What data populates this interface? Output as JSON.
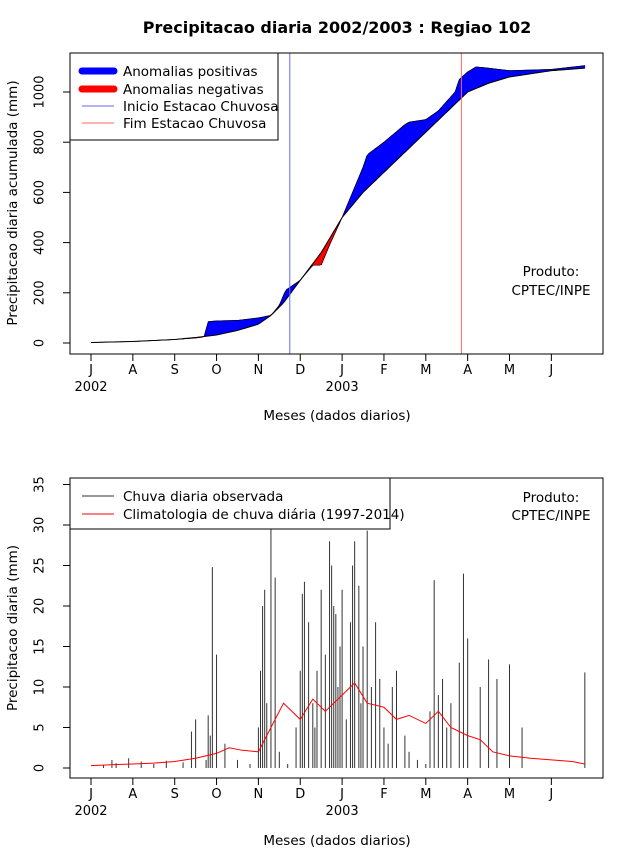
{
  "title": "Precipitacao diaria 2002/2003 : Regiao 102",
  "colors": {
    "positive": "#0000ff",
    "negative": "#ff0000",
    "onset": "#6666ff",
    "end": "#ff6666",
    "observed": "#333333",
    "climatology": "#ff0000"
  },
  "chart_data": [
    {
      "type": "area",
      "title": "Precipitacao diaria 2002/2003 : Regiao 102",
      "xlabel": "Meses (dados diarios)",
      "ylabel": "Precipitacao diaria acumulada (mm)",
      "ylim": [
        0,
        1140
      ],
      "yticks": [
        0,
        200,
        400,
        600,
        800,
        1000
      ],
      "month_ticks": [
        "J",
        "A",
        "S",
        "O",
        "N",
        "D",
        "J",
        "F",
        "M",
        "A",
        "M",
        "J"
      ],
      "year_labels": [
        {
          "label": "2002",
          "month_index": 0
        },
        {
          "label": "2003",
          "month_index": 6
        }
      ],
      "legend": {
        "placement": "top-left",
        "entries": [
          {
            "label": "Anomalias positivas",
            "color": "#0000ff"
          },
          {
            "label": "Anomalias negativas",
            "color": "#ff0000"
          },
          {
            "label": "Inicio Estacao Chuvosa",
            "color": "#6666ff"
          },
          {
            "label": "Fim Estacao Chuvosa",
            "color": "#ff6666"
          }
        ]
      },
      "annotation": [
        "Produto:",
        "CPTEC/INPE"
      ],
      "rainy_season_onset_month": 4.75,
      "rainy_season_end_month": 8.85,
      "series": [
        {
          "name": "Climatologia acumulada",
          "x": [
            0,
            1,
            2,
            2.5,
            3,
            3.5,
            4,
            4.3,
            4.6,
            5,
            5.5,
            6,
            6.5,
            7,
            7.5,
            8,
            8.5,
            9,
            9.5,
            10,
            11,
            11.8
          ],
          "values": [
            2,
            6,
            14,
            22,
            32,
            50,
            75,
            110,
            160,
            250,
            360,
            500,
            600,
            680,
            760,
            840,
            920,
            1000,
            1035,
            1060,
            1085,
            1095
          ]
        },
        {
          "name": "Observada acumulada",
          "x": [
            0,
            1,
            2,
            2.5,
            2.7,
            2.8,
            3,
            3.5,
            4,
            4.3,
            4.5,
            4.65,
            5,
            5.3,
            5.5,
            5.7,
            6,
            6.25,
            6.5,
            6.6,
            7,
            7.5,
            7.6,
            8,
            8.3,
            8.7,
            8.8,
            9,
            9.2,
            9.5,
            10,
            11,
            11.8
          ],
          "values": [
            2,
            6,
            14,
            20,
            24,
            85,
            88,
            90,
            100,
            110,
            150,
            210,
            250,
            310,
            310,
            390,
            500,
            600,
            700,
            750,
            800,
            870,
            880,
            890,
            925,
            1000,
            1050,
            1080,
            1100,
            1095,
            1085,
            1090,
            1105
          ]
        }
      ]
    },
    {
      "type": "bar",
      "xlabel": "Meses (dados diarios)",
      "ylabel": "Precipitacao diaria (mm)",
      "ylim": [
        0,
        36
      ],
      "yticks": [
        0,
        5,
        10,
        15,
        20,
        25,
        30,
        35
      ],
      "month_ticks": [
        "J",
        "A",
        "S",
        "O",
        "N",
        "D",
        "J",
        "F",
        "M",
        "A",
        "M",
        "J"
      ],
      "year_labels": [
        {
          "label": "2002",
          "month_index": 0
        },
        {
          "label": "2003",
          "month_index": 6
        }
      ],
      "legend": {
        "placement": "top-left",
        "entries": [
          {
            "label": "Chuva diaria observada",
            "color": "#333333"
          },
          {
            "label": "Climatologia de chuva diária (1997-2014)",
            "color": "#ff0000"
          }
        ]
      },
      "annotation": [
        "Produto:",
        "CPTEC/INPE"
      ],
      "series": [
        {
          "name": "Chuva diaria observada",
          "x": [
            0.3,
            0.5,
            0.6,
            0.9,
            1.2,
            1.5,
            1.8,
            2.2,
            2.4,
            2.5,
            2.75,
            2.8,
            2.85,
            2.9,
            3.0,
            3.2,
            3.5,
            3.8,
            4.0,
            4.05,
            4.1,
            4.15,
            4.2,
            4.3,
            4.4,
            4.5,
            4.7,
            4.9,
            5.0,
            5.05,
            5.1,
            5.2,
            5.3,
            5.35,
            5.4,
            5.5,
            5.6,
            5.7,
            5.75,
            5.8,
            5.85,
            5.9,
            5.95,
            6.0,
            6.1,
            6.2,
            6.25,
            6.3,
            6.4,
            6.45,
            6.5,
            6.6,
            6.7,
            6.8,
            6.9,
            7.0,
            7.1,
            7.2,
            7.3,
            7.5,
            7.6,
            7.8,
            8.0,
            8.1,
            8.2,
            8.3,
            8.4,
            8.5,
            8.6,
            8.8,
            8.9,
            9.0,
            9.3,
            9.5,
            9.7,
            10.0,
            10.3,
            11.8
          ],
          "values": [
            0.4,
            1.0,
            0.6,
            1.2,
            0.8,
            0.5,
            0.9,
            0.7,
            4.5,
            6.0,
            1.0,
            6.5,
            4.0,
            24.8,
            14.0,
            3.0,
            1.0,
            0.5,
            5.0,
            12.0,
            20.0,
            22.0,
            8.0,
            30.0,
            23.5,
            2.0,
            0.5,
            5.0,
            12.0,
            21.5,
            23.0,
            18.0,
            8.0,
            5.0,
            12.0,
            22.0,
            14.0,
            28.0,
            25.0,
            20.0,
            19.0,
            10.0,
            15.0,
            22.0,
            6.0,
            18.0,
            25.0,
            28.0,
            22.5,
            8.0,
            15.0,
            29.3,
            10.0,
            18.0,
            11.0,
            5.0,
            3.0,
            10.0,
            12.0,
            4.0,
            2.0,
            1.0,
            0.5,
            7.0,
            23.2,
            9.0,
            11.0,
            5.0,
            8.0,
            13.0,
            24.0,
            16.0,
            10.0,
            13.4,
            11.0,
            12.8,
            5.0,
            11.8
          ]
        },
        {
          "name": "Climatologia de chuva diária (1997-2014)",
          "x": [
            0,
            0.5,
            1,
            1.5,
            2,
            2.5,
            3,
            3.3,
            3.6,
            4,
            4.3,
            4.6,
            5,
            5.3,
            5.6,
            6,
            6.3,
            6.6,
            7,
            7.3,
            7.6,
            8,
            8.3,
            8.6,
            9,
            9.3,
            9.6,
            10,
            10.5,
            11,
            11.5,
            11.8
          ],
          "values": [
            0.3,
            0.4,
            0.5,
            0.6,
            0.8,
            1.2,
            1.8,
            2.5,
            2.2,
            2.0,
            5.0,
            8.0,
            6.0,
            8.5,
            7.0,
            9.0,
            10.5,
            8.0,
            7.5,
            6.0,
            6.5,
            5.5,
            7.0,
            5.0,
            4.0,
            3.5,
            2.0,
            1.5,
            1.2,
            1.0,
            0.8,
            0.5
          ]
        }
      ]
    }
  ]
}
